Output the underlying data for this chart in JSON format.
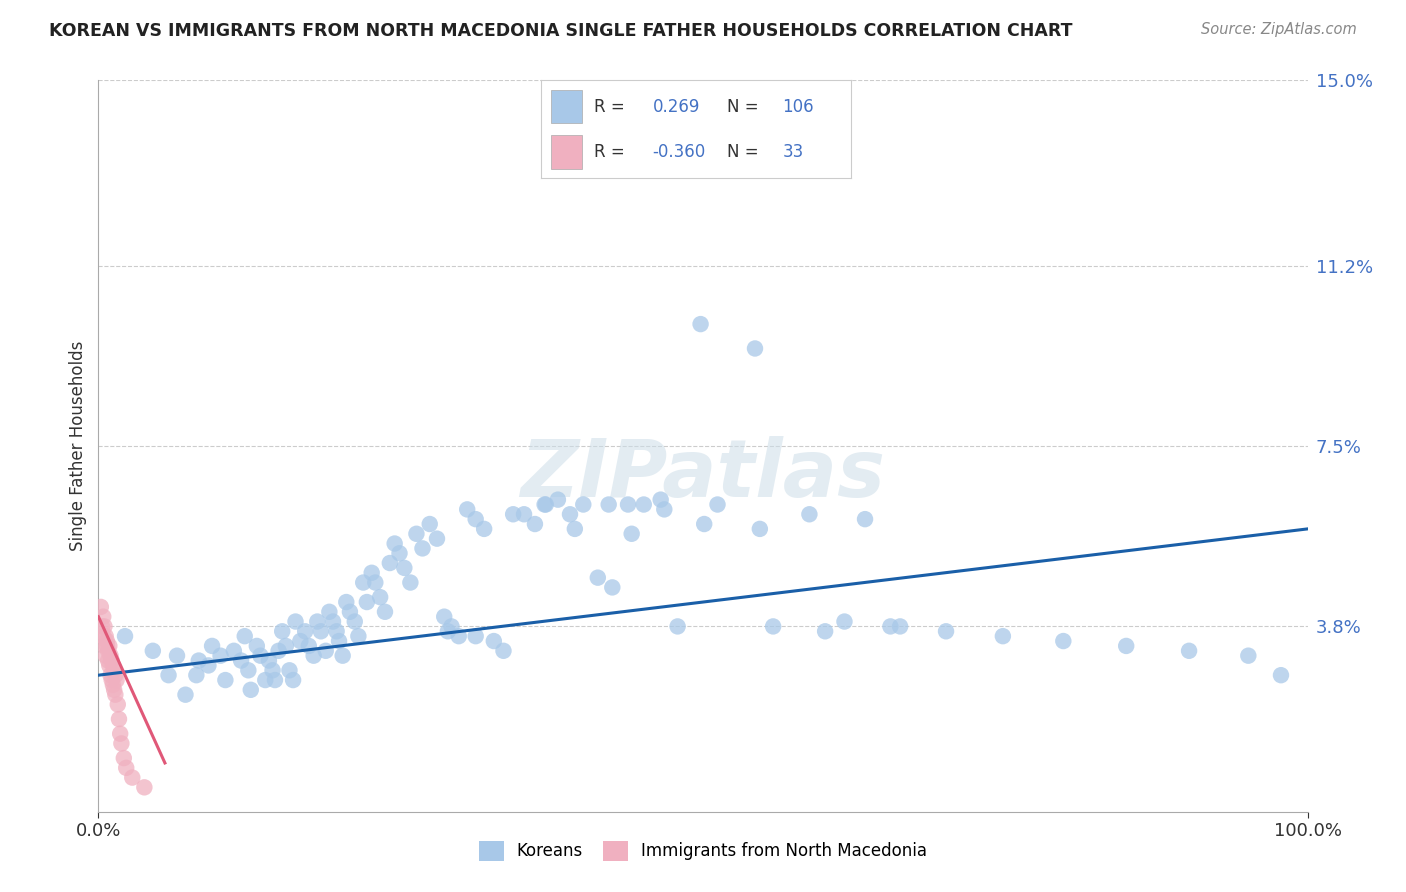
{
  "title": "KOREAN VS IMMIGRANTS FROM NORTH MACEDONIA SINGLE FATHER HOUSEHOLDS CORRELATION CHART",
  "source": "Source: ZipAtlas.com",
  "ylabel": "Single Father Households",
  "xlim": [
    0,
    1.0
  ],
  "ylim": [
    0,
    0.15
  ],
  "ytick_vals": [
    0.038,
    0.075,
    0.112,
    0.15
  ],
  "ytick_labels": [
    "3.8%",
    "7.5%",
    "11.2%",
    "15.0%"
  ],
  "xtick_vals": [
    0.0,
    1.0
  ],
  "xtick_labels": [
    "0.0%",
    "100.0%"
  ],
  "blue_R": 0.269,
  "blue_N": 106,
  "pink_R": -0.36,
  "pink_N": 33,
  "blue_color": "#a8c8e8",
  "pink_color": "#f0b0c0",
  "blue_line_color": "#1a5fa8",
  "pink_line_color": "#e05878",
  "legend_label_blue": "Koreans",
  "legend_label_pink": "Immigrants from North Macedonia",
  "blue_line_x": [
    0.0,
    1.0
  ],
  "blue_line_y": [
    0.028,
    0.058
  ],
  "pink_line_x": [
    0.0,
    0.055
  ],
  "pink_line_y": [
    0.04,
    0.01
  ],
  "blue_pts_x": [
    0.022,
    0.045,
    0.058,
    0.065,
    0.072,
    0.081,
    0.083,
    0.091,
    0.094,
    0.101,
    0.105,
    0.112,
    0.118,
    0.121,
    0.124,
    0.126,
    0.131,
    0.134,
    0.138,
    0.141,
    0.144,
    0.146,
    0.149,
    0.152,
    0.155,
    0.158,
    0.161,
    0.163,
    0.167,
    0.171,
    0.174,
    0.178,
    0.181,
    0.184,
    0.188,
    0.191,
    0.194,
    0.197,
    0.199,
    0.202,
    0.205,
    0.208,
    0.212,
    0.215,
    0.219,
    0.222,
    0.226,
    0.229,
    0.233,
    0.237,
    0.241,
    0.245,
    0.249,
    0.253,
    0.258,
    0.263,
    0.268,
    0.274,
    0.28,
    0.286,
    0.292,
    0.298,
    0.305,
    0.312,
    0.319,
    0.327,
    0.335,
    0.343,
    0.352,
    0.361,
    0.37,
    0.38,
    0.39,
    0.401,
    0.413,
    0.425,
    0.438,
    0.451,
    0.465,
    0.479,
    0.369,
    0.422,
    0.468,
    0.512,
    0.558,
    0.601,
    0.498,
    0.543,
    0.588,
    0.634,
    0.501,
    0.547,
    0.394,
    0.441,
    0.289,
    0.312,
    0.655,
    0.701,
    0.748,
    0.798,
    0.85,
    0.902,
    0.951,
    0.978,
    0.617,
    0.663
  ],
  "blue_pts_y": [
    0.036,
    0.033,
    0.028,
    0.032,
    0.024,
    0.028,
    0.031,
    0.03,
    0.034,
    0.032,
    0.027,
    0.033,
    0.031,
    0.036,
    0.029,
    0.025,
    0.034,
    0.032,
    0.027,
    0.031,
    0.029,
    0.027,
    0.033,
    0.037,
    0.034,
    0.029,
    0.027,
    0.039,
    0.035,
    0.037,
    0.034,
    0.032,
    0.039,
    0.037,
    0.033,
    0.041,
    0.039,
    0.037,
    0.035,
    0.032,
    0.043,
    0.041,
    0.039,
    0.036,
    0.047,
    0.043,
    0.049,
    0.047,
    0.044,
    0.041,
    0.051,
    0.055,
    0.053,
    0.05,
    0.047,
    0.057,
    0.054,
    0.059,
    0.056,
    0.04,
    0.038,
    0.036,
    0.062,
    0.06,
    0.058,
    0.035,
    0.033,
    0.061,
    0.061,
    0.059,
    0.063,
    0.064,
    0.061,
    0.063,
    0.048,
    0.046,
    0.063,
    0.063,
    0.064,
    0.038,
    0.063,
    0.063,
    0.062,
    0.063,
    0.038,
    0.037,
    0.1,
    0.095,
    0.061,
    0.06,
    0.059,
    0.058,
    0.058,
    0.057,
    0.037,
    0.036,
    0.038,
    0.037,
    0.036,
    0.035,
    0.034,
    0.033,
    0.032,
    0.028,
    0.039,
    0.038
  ],
  "pink_pts_x": [
    0.002,
    0.003,
    0.004,
    0.004,
    0.005,
    0.005,
    0.006,
    0.006,
    0.007,
    0.007,
    0.008,
    0.008,
    0.009,
    0.009,
    0.01,
    0.01,
    0.011,
    0.011,
    0.012,
    0.012,
    0.013,
    0.013,
    0.014,
    0.014,
    0.015,
    0.016,
    0.017,
    0.018,
    0.019,
    0.021,
    0.023,
    0.028,
    0.038
  ],
  "pink_pts_y": [
    0.042,
    0.038,
    0.04,
    0.036,
    0.038,
    0.034,
    0.036,
    0.032,
    0.034,
    0.035,
    0.033,
    0.031,
    0.034,
    0.03,
    0.032,
    0.028,
    0.031,
    0.027,
    0.03,
    0.026,
    0.029,
    0.025,
    0.028,
    0.024,
    0.027,
    0.022,
    0.019,
    0.016,
    0.014,
    0.011,
    0.009,
    0.007,
    0.005
  ]
}
